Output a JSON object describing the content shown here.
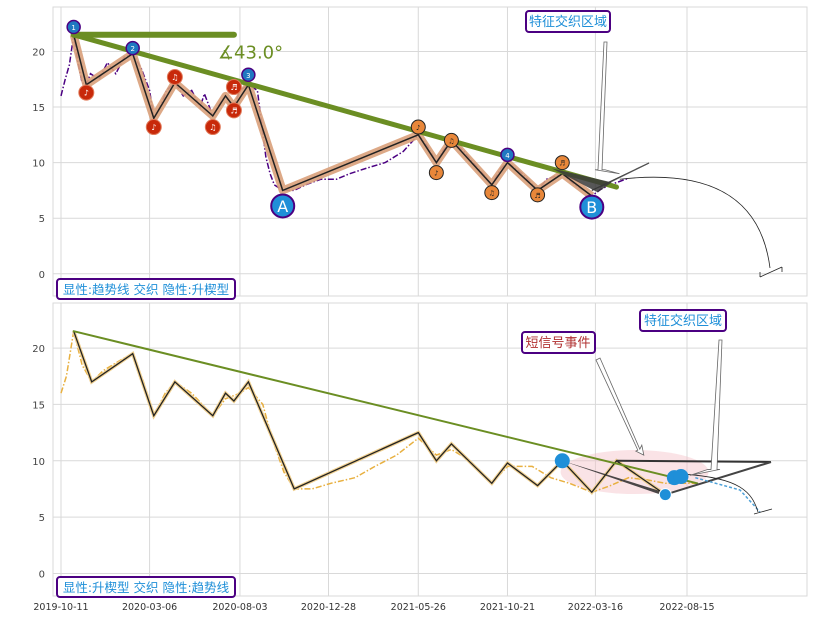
{
  "chart_data": [
    {
      "type": "line",
      "panel": "top",
      "x_ticks": [
        {
          "date": "2019-10-11"
        },
        {
          "date": "2020-03-06"
        },
        {
          "date": "2020-08-03"
        },
        {
          "date": "2020-12-28"
        },
        {
          "date": "2021-05-26"
        },
        {
          "date": "2021-10-21"
        },
        {
          "date": "2022-03-16"
        },
        {
          "date": "2022-08-15"
        }
      ],
      "ylim": [
        -2,
        24
      ],
      "y_ticks": [
        0,
        5,
        10,
        15,
        20
      ],
      "grid": true,
      "price_series": {
        "color": "#4b0082",
        "style": "dash-dot",
        "points": [
          [
            "2019-10-11",
            16.0
          ],
          [
            "2019-10-18",
            17.5
          ],
          [
            "2019-10-25",
            18.8
          ],
          [
            "2019-11-01",
            21.5
          ],
          [
            "2019-11-08",
            19.0
          ],
          [
            "2019-11-15",
            17.2
          ],
          [
            "2019-11-22",
            17.0
          ],
          [
            "2019-11-29",
            18.0
          ],
          [
            "2019-12-13",
            17.5
          ],
          [
            "2019-12-27",
            19.0
          ],
          [
            "2020-01-10",
            18.0
          ],
          [
            "2020-01-24",
            19.5
          ],
          [
            "2020-02-07",
            19.8
          ],
          [
            "2020-02-21",
            18.5
          ],
          [
            "2020-03-06",
            16.5
          ],
          [
            "2020-03-13",
            14.0
          ],
          [
            "2020-03-20",
            14.6
          ],
          [
            "2020-03-27",
            15.5
          ],
          [
            "2020-04-03",
            16.5
          ],
          [
            "2020-04-17",
            17.2
          ],
          [
            "2020-05-01",
            16.0
          ],
          [
            "2020-05-15",
            16.5
          ],
          [
            "2020-05-29",
            15.0
          ],
          [
            "2020-06-05",
            16.2
          ],
          [
            "2020-06-19",
            14.2
          ],
          [
            "2020-07-03",
            15.5
          ],
          [
            "2020-07-10",
            16.0
          ],
          [
            "2020-07-24",
            15.0
          ],
          [
            "2020-08-03",
            16.5
          ],
          [
            "2020-08-17",
            17.0
          ],
          [
            "2020-09-01",
            16.5
          ],
          [
            "2020-09-08",
            13.5
          ],
          [
            "2020-09-15",
            10.5
          ],
          [
            "2020-09-22",
            9.0
          ],
          [
            "2020-09-29",
            8.0
          ],
          [
            "2020-10-13",
            7.5
          ],
          [
            "2020-11-01",
            7.5
          ],
          [
            "2020-11-20",
            8.0
          ],
          [
            "2020-12-15",
            8.5
          ],
          [
            "2021-01-10",
            8.5
          ],
          [
            "2021-02-01",
            9.0
          ],
          [
            "2021-03-01",
            9.5
          ],
          [
            "2021-04-01",
            10.0
          ],
          [
            "2021-05-01",
            11.0
          ],
          [
            "2021-05-26",
            12.5
          ],
          [
            "2021-06-10",
            11.5
          ],
          [
            "2021-06-25",
            10.0
          ],
          [
            "2021-07-05",
            11.0
          ],
          [
            "2021-07-20",
            12.0
          ],
          [
            "2021-08-10",
            11.0
          ],
          [
            "2021-08-25",
            10.0
          ],
          [
            "2021-09-10",
            9.0
          ],
          [
            "2021-09-25",
            8.0
          ],
          [
            "2021-10-10",
            9.5
          ],
          [
            "2021-10-21",
            10.0
          ],
          [
            "2021-11-15",
            9.0
          ],
          [
            "2021-12-10",
            7.5
          ],
          [
            "2021-12-25",
            8.5
          ],
          [
            "2022-01-20",
            9.0
          ],
          [
            "2022-02-10",
            8.0
          ],
          [
            "2022-02-25",
            7.5
          ],
          [
            "2022-03-10",
            7.0
          ],
          [
            "2022-03-25",
            7.6
          ],
          [
            "2022-04-10",
            8.0
          ],
          [
            "2022-04-25",
            8.3
          ],
          [
            "2022-05-10",
            8.6
          ]
        ]
      },
      "zigzag": [
        [
          "2019-11-01",
          21.5
        ],
        [
          "2019-11-22",
          17.0
        ],
        [
          "2020-02-07",
          19.8
        ],
        [
          "2020-03-13",
          14.0
        ],
        [
          "2020-04-17",
          17.2
        ],
        [
          "2020-06-19",
          14.2
        ],
        [
          "2020-07-10",
          16.0
        ],
        [
          "2020-07-24",
          15.0
        ],
        [
          "2020-08-17",
          17.0
        ],
        [
          "2020-10-13",
          7.5
        ],
        [
          "2021-05-26",
          12.5
        ],
        [
          "2021-06-25",
          10.0
        ],
        [
          "2021-07-20",
          12.0
        ],
        [
          "2021-09-25",
          8.0
        ],
        [
          "2021-10-21",
          10.0
        ],
        [
          "2021-12-10",
          7.5
        ],
        [
          "2022-01-20",
          9.0
        ],
        [
          "2022-03-10",
          7.0
        ]
      ],
      "trend_line": {
        "from": [
          "2019-11-01",
          21.5
        ],
        "to": [
          "2022-04-20",
          7.8
        ],
        "color": "#6b8e23"
      },
      "cap_line": {
        "from": [
          "2019-11-01",
          21.5
        ],
        "to": [
          "2020-07-24",
          21.5
        ],
        "color": "#6b8e23"
      },
      "angle_label": "∡43.0°",
      "blue_markers": [
        {
          "date": "2019-11-01",
          "value": 22.2,
          "label": "1"
        },
        {
          "date": "2020-02-07",
          "value": 20.3,
          "label": "2"
        },
        {
          "date": "2020-08-17",
          "value": 17.9,
          "label": "3"
        },
        {
          "date": "2021-10-21",
          "value": 10.7,
          "label": "4"
        }
      ],
      "red_markers": [
        {
          "date": "2019-11-22",
          "value": 16.3,
          "label": "♪"
        },
        {
          "date": "2020-03-13",
          "value": 13.2,
          "label": "♪"
        },
        {
          "date": "2020-04-17",
          "value": 17.7,
          "label": "♫"
        },
        {
          "date": "2020-06-19",
          "value": 13.2,
          "label": "♫"
        },
        {
          "date": "2020-07-24",
          "value": 14.7,
          "label": "♬"
        },
        {
          "date": "2020-07-24",
          "value": 16.8,
          "label": "♬"
        }
      ],
      "orange_markers": [
        {
          "date": "2021-05-26",
          "value": 13.2,
          "label": "♪"
        },
        {
          "date": "2021-06-25",
          "value": 9.1,
          "label": "♪"
        },
        {
          "date": "2021-07-20",
          "value": 12.0,
          "label": "♫"
        },
        {
          "date": "2021-09-25",
          "value": 7.3,
          "label": "♫"
        },
        {
          "date": "2021-12-10",
          "value": 7.1,
          "label": "♬"
        },
        {
          "date": "2022-01-20",
          "value": 10.0,
          "label": "♬"
        }
      ],
      "point_labels": [
        {
          "date": "2020-10-13",
          "value": 6.1,
          "label": "A"
        },
        {
          "date": "2022-03-10",
          "value": 6.0,
          "label": "B"
        }
      ],
      "annotation": {
        "text": "特征交织区域",
        "points_to": [
          "2022-04-25",
          9.0
        ]
      },
      "caption": "显性:趋势线 交织 隐性:升楔型"
    },
    {
      "type": "line",
      "panel": "bottom",
      "x_ticks": [
        {
          "date": "2019-10-11",
          "label": "2019-10-11"
        },
        {
          "date": "2020-03-06",
          "label": "2020-03-06"
        },
        {
          "date": "2020-08-03",
          "label": "2020-08-03"
        },
        {
          "date": "2020-12-28",
          "label": "2020-12-28"
        },
        {
          "date": "2021-05-26",
          "label": "2021-05-26"
        },
        {
          "date": "2021-10-21",
          "label": "2021-10-21"
        },
        {
          "date": "2022-03-16",
          "label": "2022-03-16"
        },
        {
          "date": "2022-08-15",
          "label": "2022-08-15"
        }
      ],
      "ylim": [
        -2,
        24
      ],
      "y_ticks": [
        0,
        5,
        10,
        15,
        20
      ],
      "grid": true,
      "price_series": {
        "color": "#e8b040",
        "style": "dash-dot",
        "points": [
          [
            "2019-10-11",
            16.0
          ],
          [
            "2019-10-20",
            17.5
          ],
          [
            "2019-11-01",
            21.5
          ],
          [
            "2019-11-15",
            18.5
          ],
          [
            "2019-12-01",
            17.0
          ],
          [
            "2019-12-20",
            18.0
          ],
          [
            "2020-01-20",
            19.0
          ],
          [
            "2020-02-07",
            19.5
          ],
          [
            "2020-02-25",
            17.0
          ],
          [
            "2020-03-13",
            14.0
          ],
          [
            "2020-04-01",
            16.0
          ],
          [
            "2020-04-17",
            17.0
          ],
          [
            "2020-05-15",
            16.0
          ],
          [
            "2020-06-19",
            14.0
          ],
          [
            "2020-07-10",
            15.5
          ],
          [
            "2020-08-03",
            16.0
          ],
          [
            "2020-08-17",
            16.5
          ],
          [
            "2020-09-10",
            15.0
          ],
          [
            "2020-09-25",
            12.0
          ],
          [
            "2020-10-15",
            9.0
          ],
          [
            "2020-11-01",
            7.5
          ],
          [
            "2020-12-01",
            7.5
          ],
          [
            "2021-01-01",
            8.0
          ],
          [
            "2021-02-10",
            8.5
          ],
          [
            "2021-03-15",
            9.5
          ],
          [
            "2021-04-20",
            10.5
          ],
          [
            "2021-05-26",
            12.0
          ],
          [
            "2021-06-25",
            10.5
          ],
          [
            "2021-07-20",
            11.0
          ],
          [
            "2021-08-20",
            10.0
          ],
          [
            "2021-09-25",
            8.0
          ],
          [
            "2021-10-21",
            9.5
          ],
          [
            "2021-12-01",
            9.5
          ],
          [
            "2022-01-01",
            8.5
          ],
          [
            "2022-02-01",
            8.0
          ],
          [
            "2022-03-10",
            7.2
          ],
          [
            "2022-04-10",
            7.8
          ],
          [
            "2022-05-10",
            8.5
          ],
          [
            "2022-06-10",
            8.3
          ],
          [
            "2022-07-10",
            8.0
          ],
          [
            "2022-08-10",
            8.0
          ],
          [
            "2022-09-01",
            8.0
          ]
        ]
      },
      "zigzag": [
        [
          "2019-11-01",
          21.5
        ],
        [
          "2019-12-01",
          17.0
        ],
        [
          "2020-02-07",
          19.5
        ],
        [
          "2020-03-13",
          14.0
        ],
        [
          "2020-04-17",
          17.0
        ],
        [
          "2020-06-19",
          14.0
        ],
        [
          "2020-07-10",
          16.0
        ],
        [
          "2020-07-24",
          15.3
        ],
        [
          "2020-08-17",
          17.0
        ],
        [
          "2020-11-01",
          7.5
        ],
        [
          "2021-05-26",
          12.5
        ],
        [
          "2021-06-25",
          10.0
        ],
        [
          "2021-07-20",
          11.5
        ],
        [
          "2021-09-25",
          8.0
        ],
        [
          "2021-10-21",
          9.8
        ],
        [
          "2021-12-10",
          7.8
        ],
        [
          "2022-01-20",
          10.0
        ],
        [
          "2022-03-10",
          7.2
        ],
        [
          "2022-04-20",
          10.0
        ],
        [
          "2022-07-10",
          7.0
        ]
      ],
      "trend_line": {
        "from": [
          "2019-11-01",
          21.5
        ],
        "to": [
          "2022-09-01",
          8.0
        ],
        "color": "#6b8e23"
      },
      "blue_dots": [
        {
          "date": "2022-01-20",
          "value": 10.0
        },
        {
          "date": "2022-07-10",
          "value": 7.0
        },
        {
          "date": "2022-07-25",
          "value": 8.5
        },
        {
          "date": "2022-08-05",
          "value": 8.6
        }
      ],
      "annotations": [
        {
          "text": "短信号事件",
          "points_to": [
            "2022-06-01",
            10.5
          ]
        },
        {
          "text": "特征交织区域",
          "points_to": [
            "2022-08-20",
            8.7
          ]
        }
      ],
      "caption": "显性:升楔型 交织 隐性:趋势线"
    }
  ]
}
